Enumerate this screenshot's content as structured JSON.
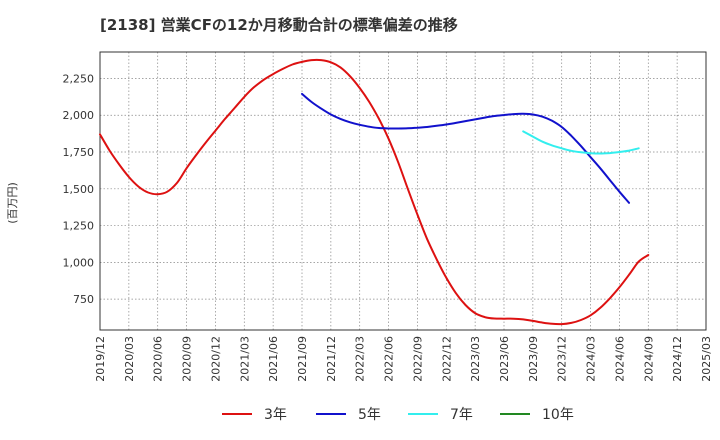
{
  "chart_data": {
    "type": "line",
    "title": "[2138]  営業CFの12か月移動合計の標準偏差の推移",
    "ylabel": "(百万円)",
    "xlabel": "",
    "x": [
      "2019/12",
      "2020/03",
      "2020/06",
      "2020/09",
      "2020/12",
      "2021/03",
      "2021/06",
      "2021/09",
      "2021/12",
      "2022/03",
      "2022/06",
      "2022/09",
      "2022/12",
      "2023/03",
      "2023/06",
      "2023/09",
      "2023/12",
      "2024/03",
      "2024/06",
      "2024/09",
      "2024/12",
      "2025/03"
    ],
    "ylim": [
      540,
      2430
    ],
    "yticks": [
      750,
      1000,
      1250,
      1500,
      1750,
      2000,
      2250
    ],
    "ytick_labels": [
      "750",
      "1,000",
      "1,250",
      "1,500",
      "1,750",
      "2,000",
      "2,250"
    ],
    "grid": true,
    "legend_position": "bottom",
    "series": [
      {
        "name": "3年",
        "color": "#dd1111",
        "points": [
          [
            "2019/12",
            1870
          ],
          [
            "2020/01",
            1760
          ],
          [
            "2020/02",
            1665
          ],
          [
            "2020/03",
            1580
          ],
          [
            "2020/04",
            1515
          ],
          [
            "2020/05",
            1475
          ],
          [
            "2020/06",
            1463
          ],
          [
            "2020/07",
            1480
          ],
          [
            "2020/08",
            1540
          ],
          [
            "2020/09",
            1640
          ],
          [
            "2020/10",
            1730
          ],
          [
            "2020/11",
            1815
          ],
          [
            "2020/12",
            1895
          ],
          [
            "2021/01",
            1975
          ],
          [
            "2021/02",
            2050
          ],
          [
            "2021/03",
            2125
          ],
          [
            "2021/04",
            2190
          ],
          [
            "2021/05",
            2240
          ],
          [
            "2021/06",
            2280
          ],
          [
            "2021/07",
            2315
          ],
          [
            "2021/08",
            2345
          ],
          [
            "2021/09",
            2363
          ],
          [
            "2021/10",
            2375
          ],
          [
            "2021/11",
            2375
          ],
          [
            "2021/12",
            2360
          ],
          [
            "2022/01",
            2325
          ],
          [
            "2022/02",
            2265
          ],
          [
            "2022/03",
            2185
          ],
          [
            "2022/04",
            2090
          ],
          [
            "2022/05",
            1975
          ],
          [
            "2022/06",
            1840
          ],
          [
            "2022/07",
            1680
          ],
          [
            "2022/08",
            1500
          ],
          [
            "2022/09",
            1325
          ],
          [
            "2022/10",
            1160
          ],
          [
            "2022/11",
            1020
          ],
          [
            "2022/12",
            895
          ],
          [
            "2023/01",
            790
          ],
          [
            "2023/02",
            710
          ],
          [
            "2023/03",
            655
          ],
          [
            "2023/04",
            628
          ],
          [
            "2023/05",
            618
          ],
          [
            "2023/06",
            617
          ],
          [
            "2023/07",
            617
          ],
          [
            "2023/08",
            612
          ],
          [
            "2023/09",
            602
          ],
          [
            "2023/10",
            590
          ],
          [
            "2023/11",
            582
          ],
          [
            "2023/12",
            580
          ],
          [
            "2024/01",
            588
          ],
          [
            "2024/02",
            608
          ],
          [
            "2024/03",
            640
          ],
          [
            "2024/04",
            690
          ],
          [
            "2024/05",
            755
          ],
          [
            "2024/06",
            830
          ],
          [
            "2024/07",
            915
          ],
          [
            "2024/08",
            1005
          ],
          [
            "2024/09",
            1050
          ]
        ]
      },
      {
        "name": "5年",
        "color": "#1111cc",
        "points": [
          [
            "2021/09",
            2145
          ],
          [
            "2021/10",
            2090
          ],
          [
            "2021/11",
            2045
          ],
          [
            "2021/12",
            2005
          ],
          [
            "2022/01",
            1975
          ],
          [
            "2022/02",
            1952
          ],
          [
            "2022/03",
            1935
          ],
          [
            "2022/04",
            1922
          ],
          [
            "2022/05",
            1913
          ],
          [
            "2022/06",
            1910
          ],
          [
            "2022/07",
            1910
          ],
          [
            "2022/08",
            1911
          ],
          [
            "2022/09",
            1915
          ],
          [
            "2022/10",
            1920
          ],
          [
            "2022/11",
            1928
          ],
          [
            "2022/12",
            1937
          ],
          [
            "2023/01",
            1948
          ],
          [
            "2023/02",
            1960
          ],
          [
            "2023/03",
            1972
          ],
          [
            "2023/04",
            1984
          ],
          [
            "2023/05",
            1995
          ],
          [
            "2023/06",
            2002
          ],
          [
            "2023/07",
            2008
          ],
          [
            "2023/08",
            2010
          ],
          [
            "2023/09",
            2005
          ],
          [
            "2023/10",
            1990
          ],
          [
            "2023/11",
            1962
          ],
          [
            "2023/12",
            1920
          ],
          [
            "2024/01",
            1860
          ],
          [
            "2024/02",
            1790
          ],
          [
            "2024/03",
            1715
          ],
          [
            "2024/04",
            1640
          ],
          [
            "2024/05",
            1560
          ],
          [
            "2024/06",
            1480
          ],
          [
            "2024/07",
            1405
          ]
        ]
      },
      {
        "name": "7年",
        "color": "#33eeee",
        "points": [
          [
            "2023/08",
            1890
          ],
          [
            "2023/09",
            1855
          ],
          [
            "2023/10",
            1820
          ],
          [
            "2023/11",
            1795
          ],
          [
            "2023/12",
            1775
          ],
          [
            "2024/01",
            1758
          ],
          [
            "2024/02",
            1748
          ],
          [
            "2024/03",
            1742
          ],
          [
            "2024/04",
            1740
          ],
          [
            "2024/05",
            1743
          ],
          [
            "2024/06",
            1750
          ],
          [
            "2024/07",
            1760
          ],
          [
            "2024/08",
            1775
          ]
        ]
      },
      {
        "name": "10年",
        "color": "#228822",
        "points": []
      }
    ]
  }
}
